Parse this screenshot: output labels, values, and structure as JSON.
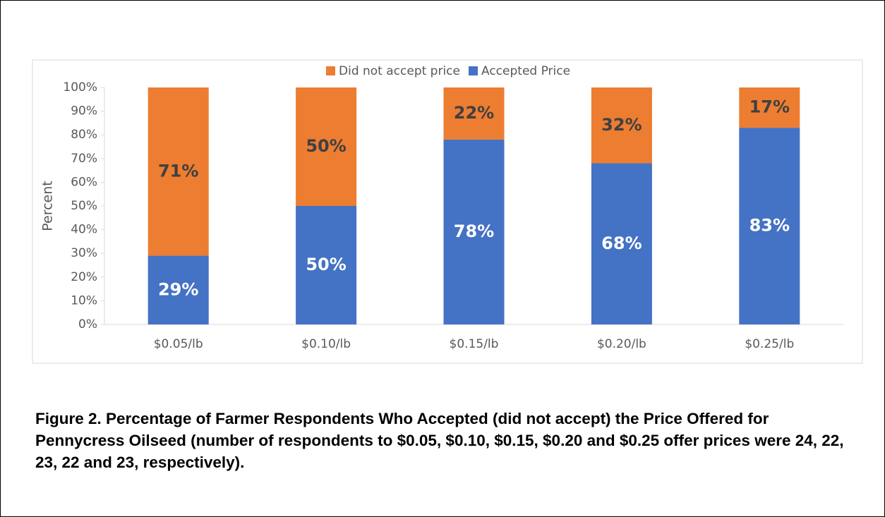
{
  "chart_data": {
    "type": "stacked_bar",
    "categories": [
      "$0.05/lb",
      "$0.10/lb",
      "$0.15/lb",
      "$0.20/lb",
      "$0.25/lb"
    ],
    "series": [
      {
        "name": "Accepted Price",
        "color": "#4472c4",
        "values": [
          29,
          50,
          78,
          68,
          83
        ],
        "value_labels": [
          "29%",
          "50%",
          "78%",
          "68%",
          "83%"
        ]
      },
      {
        "name": "Did not accept price",
        "color": "#ed7d31",
        "values": [
          71,
          50,
          22,
          32,
          17
        ],
        "value_labels": [
          "71%",
          "50%",
          "22%",
          "32%",
          "17%"
        ]
      }
    ],
    "ylabel": "Percent",
    "ylim": [
      0,
      100
    ],
    "yticks": [
      {
        "value": 0,
        "label": "0%"
      },
      {
        "value": 10,
        "label": "10%"
      },
      {
        "value": 20,
        "label": "20%"
      },
      {
        "value": 30,
        "label": "30%"
      },
      {
        "value": 40,
        "label": "40%"
      },
      {
        "value": 50,
        "label": "50%"
      },
      {
        "value": 60,
        "label": "60%"
      },
      {
        "value": 70,
        "label": "70%"
      },
      {
        "value": 80,
        "label": "80%"
      },
      {
        "value": 90,
        "label": "90%"
      },
      {
        "value": 100,
        "label": "100%"
      }
    ],
    "legend": "top",
    "caption": "Figure 2. Percentage of Farmer Respondents Who Accepted (did not accept) the Price Offered for Pennycress Oilseed (number of respondents to $0.05, $0.10, $0.15, $0.20 and $0.25 offer prices were 24, 22, 23, 22 and 23, respectively)."
  }
}
